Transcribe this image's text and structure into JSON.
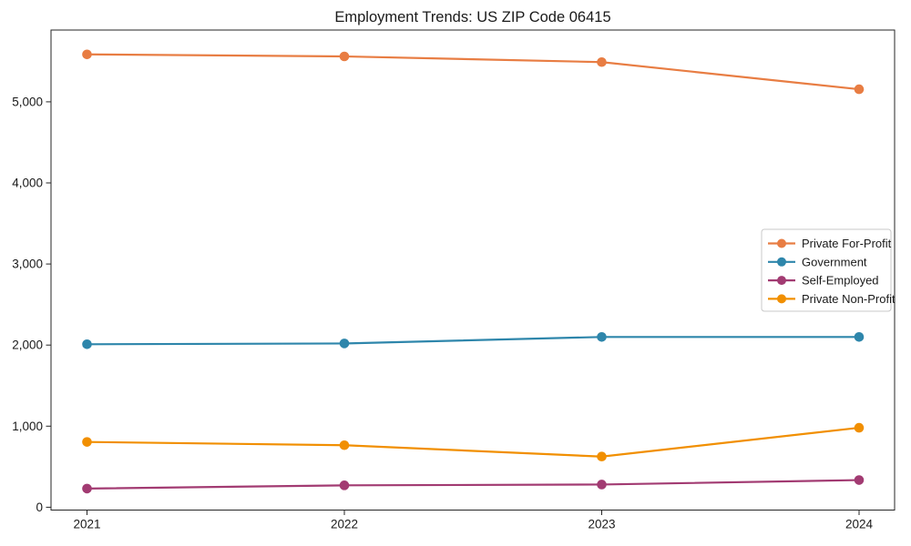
{
  "chart_data": {
    "type": "line",
    "title": "Employment Trends: US ZIP Code 06415",
    "x": [
      2021,
      2022,
      2023,
      2024
    ],
    "x_tick_labels": [
      "2021",
      "2022",
      "2023",
      "2024"
    ],
    "y_ticks": [
      0,
      1000,
      2000,
      3000,
      4000,
      5000
    ],
    "y_tick_labels": [
      "0",
      "1,000",
      "2,000",
      "3,000",
      "4,000",
      "5,000"
    ],
    "ylim": [
      0,
      5890
    ],
    "xlabel": "",
    "ylabel": "",
    "grid": false,
    "legend_position": "center-right",
    "series": [
      {
        "name": "Private For-Profit",
        "color": "#E87D43",
        "values": [
          5585,
          5560,
          5490,
          5155
        ]
      },
      {
        "name": "Government",
        "color": "#2E86AB",
        "values": [
          2010,
          2020,
          2100,
          2100
        ]
      },
      {
        "name": "Self-Employed",
        "color": "#A23B72",
        "values": [
          230,
          270,
          280,
          335
        ]
      },
      {
        "name": "Private Non-Profit",
        "color": "#F18F01",
        "values": [
          805,
          765,
          625,
          980
        ]
      }
    ],
    "text_color": "#1a1a1a",
    "spine_color": "#262626",
    "legend_border_color": "#c8c8c8",
    "background_color": "#ffffff"
  }
}
